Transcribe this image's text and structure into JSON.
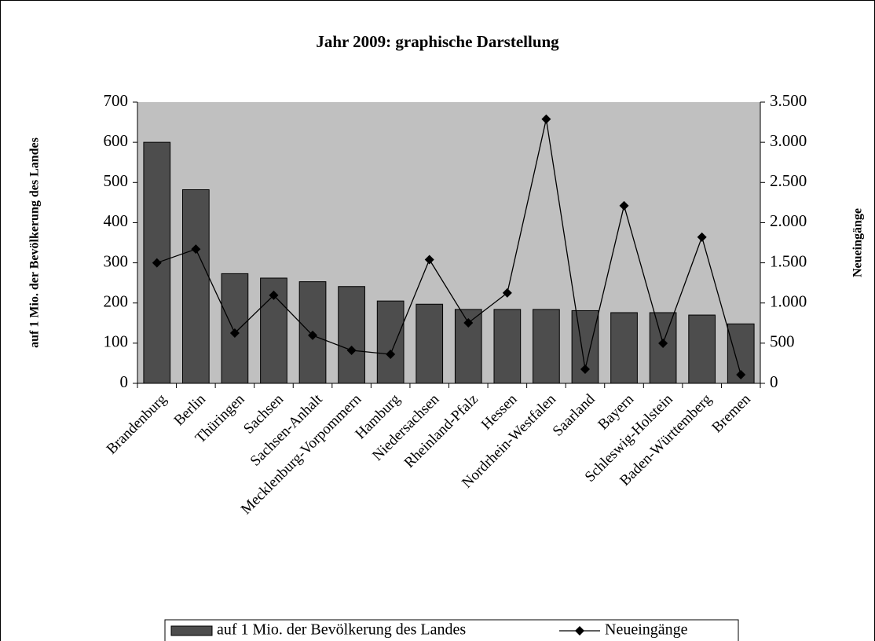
{
  "chart_data": {
    "type": "bar_line",
    "title": "Jahr 2009: graphische Darstellung",
    "y_label": "auf 1 Mio. der Bevölkerung des Landes",
    "y2_label": "Neueingänge",
    "categories": [
      "Brandenburg",
      "Berlin",
      "Thüringen",
      "Sachsen",
      "Sachsen-Anhalt",
      "Mecklenburg-Vorpommern",
      "Hamburg",
      "Niedersachsen",
      "Rheinland-Pfalz",
      "Hessen",
      "Nordrhein-Westfalen",
      "Saarland",
      "Bayern",
      "Schleswig-Holstein",
      "Baden-Württemberg",
      "Bremen"
    ],
    "series": [
      {
        "name": "auf 1 Mio. der Bevölkerung des Landes",
        "type": "bar",
        "color": "#4d4d4d",
        "values": [
          600,
          482,
          273,
          262,
          253,
          241,
          205,
          197,
          184,
          184,
          184,
          181,
          176,
          176,
          170,
          148
        ]
      },
      {
        "name": "Neueingänge",
        "type": "line",
        "axis": "y2",
        "color": "#000000",
        "values": [
          1500,
          1670,
          626,
          1096,
          597,
          411,
          362,
          1540,
          753,
          1125,
          3288,
          176,
          2211,
          499,
          1820,
          108
        ]
      }
    ],
    "ylim": [
      0,
      700
    ],
    "yticks": [
      0,
      100,
      200,
      300,
      400,
      500,
      600,
      700
    ],
    "y2lim": [
      0,
      3500
    ],
    "y2ticks": [
      0,
      500,
      {
        "value": 1000,
        "label": "1.000"
      },
      {
        "value": 1500,
        "label": "1.500"
      },
      {
        "value": 2000,
        "label": "2.000"
      },
      {
        "value": 2500,
        "label": "2.500"
      },
      {
        "value": 3000,
        "label": "3.000"
      },
      {
        "value": 3500,
        "label": "3.500"
      }
    ],
    "plot_background": "#c0c0c0",
    "legend": "bottom"
  }
}
